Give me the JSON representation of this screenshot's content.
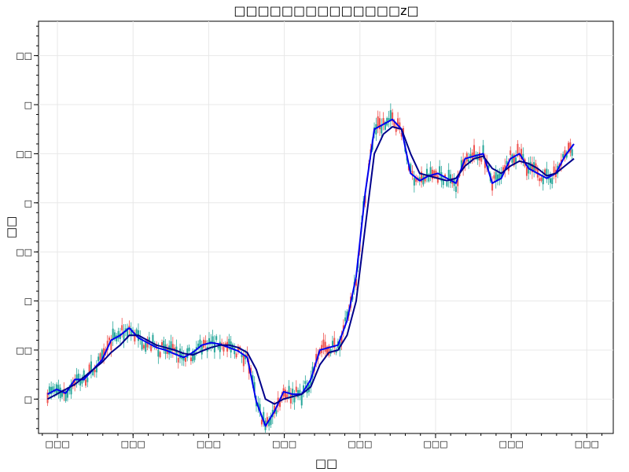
{
  "chart_data": {
    "type": "line",
    "title": "□□□□□□□□□□□□□□z□",
    "xlabel": "□□",
    "ylabel": "□□",
    "x_ticks": [
      "□□□",
      "□□□",
      "□□□",
      "□□□",
      "□□□",
      "□□□",
      "□□□",
      "□□□"
    ],
    "y_ticks": [
      "□□",
      "□",
      "□□",
      "□",
      "□□",
      "□",
      "□□",
      "□"
    ],
    "xlim": [
      0,
      7.6
    ],
    "ylim": [
      -0.7,
      7.7
    ],
    "grid": true,
    "legend": "none",
    "colors": {
      "up_candle": "#26a69a",
      "down_candle": "#ef5350",
      "ma_short": "#0000ee",
      "ma_long": "#00008b"
    },
    "x": [
      0.12,
      0.24,
      0.36,
      0.48,
      0.6,
      0.72,
      0.84,
      0.96,
      1.08,
      1.2,
      1.32,
      1.44,
      1.56,
      1.68,
      1.8,
      1.92,
      2.04,
      2.16,
      2.28,
      2.4,
      2.52,
      2.64,
      2.76,
      2.88,
      3.0,
      3.12,
      3.24,
      3.36,
      3.48,
      3.6,
      3.72,
      3.84,
      3.96,
      4.08,
      4.2,
      4.32,
      4.44,
      4.56,
      4.68,
      4.8,
      4.92,
      5.04,
      5.16,
      5.28,
      5.4,
      5.52,
      5.64,
      5.76,
      5.88,
      6.0,
      6.12,
      6.24,
      6.36,
      6.48,
      6.6,
      6.72,
      6.84,
      6.96,
      7.08
    ],
    "series": [
      {
        "values": [
          0.1,
          0.2,
          0.12,
          0.4,
          0.4,
          0.6,
          0.8,
          1.2,
          1.3,
          1.45,
          1.25,
          1.15,
          1.05,
          1.0,
          0.92,
          0.85,
          0.95,
          1.1,
          1.15,
          1.12,
          1.05,
          0.98,
          0.85,
          -0.05,
          -0.55,
          -0.25,
          0.15,
          0.1,
          0.1,
          0.4,
          1.0,
          1.05,
          1.1,
          1.6,
          2.5,
          4.2,
          5.5,
          5.6,
          5.7,
          5.5,
          4.6,
          4.45,
          4.55,
          4.6,
          4.5,
          4.4,
          4.9,
          4.95,
          5.0,
          4.4,
          4.5,
          4.9,
          5.0,
          4.7,
          4.6,
          4.5,
          4.6,
          4.95,
          5.2
        ]
      },
      {
        "values": [
          0.0,
          0.1,
          0.2,
          0.3,
          0.45,
          0.6,
          0.75,
          0.95,
          1.1,
          1.3,
          1.3,
          1.2,
          1.1,
          1.05,
          1.0,
          0.93,
          0.9,
          0.98,
          1.05,
          1.1,
          1.1,
          1.05,
          0.95,
          0.6,
          0.0,
          -0.1,
          0.0,
          0.05,
          0.1,
          0.25,
          0.7,
          0.95,
          1.0,
          1.3,
          2.0,
          3.5,
          5.0,
          5.4,
          5.55,
          5.5,
          5.0,
          4.6,
          4.55,
          4.5,
          4.45,
          4.5,
          4.75,
          4.9,
          4.95,
          4.7,
          4.6,
          4.75,
          4.85,
          4.8,
          4.7,
          4.55,
          4.6,
          4.75,
          4.9
        ]
      }
    ]
  }
}
